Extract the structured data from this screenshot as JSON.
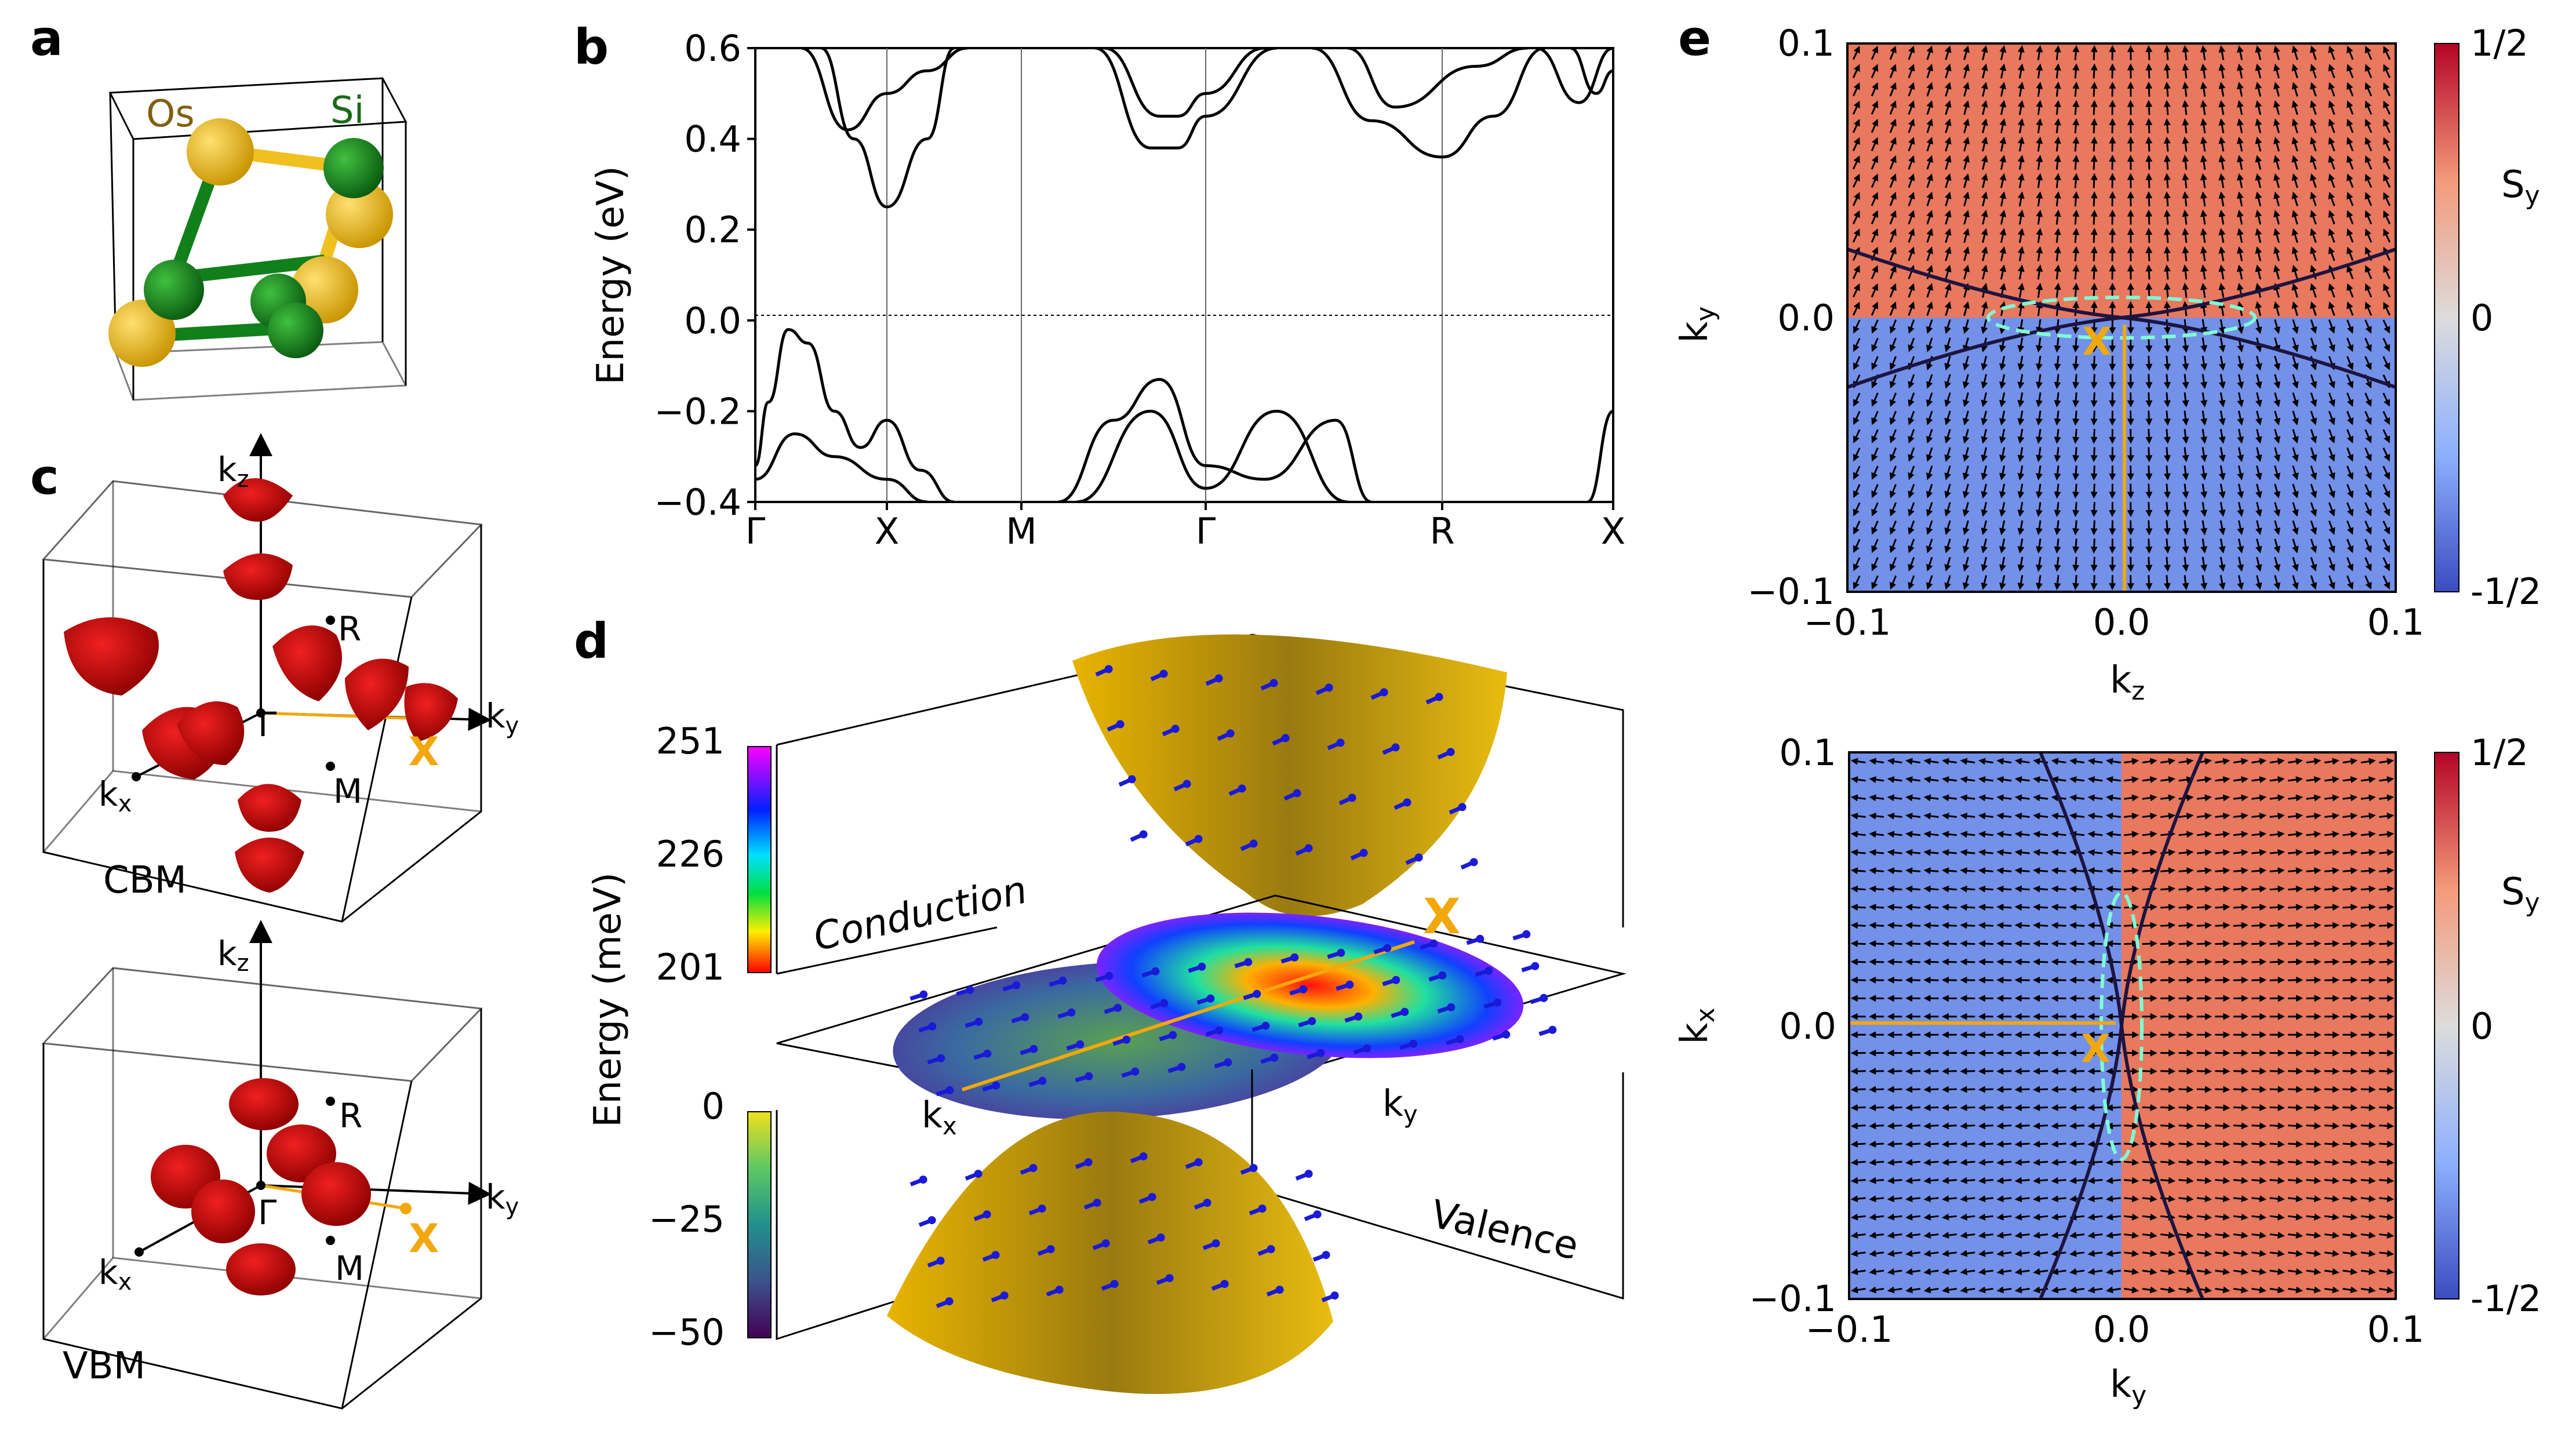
{
  "panels": {
    "a": {
      "letter": "a",
      "atoms": [
        "Os",
        "Si"
      ],
      "colors": {
        "os": "#f0c020",
        "si": "#11801a",
        "os_text": "#806010",
        "si_text": "#1a6a1a"
      }
    },
    "b": {
      "letter": "b",
      "ylabel": "Energy (eV)",
      "yticks": [
        "0.6",
        "0.4",
        "0.2",
        "0.0",
        "−0.2",
        "−0.4"
      ],
      "kpath": [
        "Γ",
        "X",
        "M",
        "Γ",
        "R",
        "X"
      ]
    },
    "c": {
      "letter": "c",
      "top": {
        "label": "CBM",
        "kz": "k",
        "kz_sub": "z",
        "ky": "k",
        "ky_sub": "y",
        "kx": "k",
        "kx_sub": "x",
        "R": "R",
        "Gamma": "Γ",
        "M": "M",
        "X": "X"
      },
      "bottom": {
        "label": "VBM",
        "kz": "k",
        "kz_sub": "z",
        "ky": "k",
        "ky_sub": "y",
        "kx": "k",
        "kx_sub": "x",
        "R": "R",
        "Gamma": "Γ",
        "M": "M",
        "X": "X"
      }
    },
    "d": {
      "letter": "d",
      "ylabel": "Energy (meV)",
      "cond_ticks": [
        "251",
        "226",
        "201"
      ],
      "val_ticks": [
        "0",
        "−25",
        "−50"
      ],
      "conduction": "Conduction",
      "valence": "Valence",
      "kx": "k",
      "kx_sub": "x",
      "ky": "k",
      "ky_sub": "y",
      "X": "X"
    },
    "e": {
      "letter": "e",
      "top": {
        "xlabel": "k",
        "xlabel_sub": "z",
        "ylabel": "k",
        "ylabel_sub": "y",
        "xticks": [
          "−0.1",
          "0.0",
          "0.1"
        ],
        "yticks": [
          "0.1",
          "0.0",
          "−0.1"
        ],
        "cbar_ticks": [
          "1/2",
          "0",
          "-1/2"
        ],
        "cbar_label": "S",
        "cbar_label_sub": "y",
        "X": "X"
      },
      "bottom": {
        "xlabel": "k",
        "xlabel_sub": "y",
        "ylabel": "k",
        "ylabel_sub": "x",
        "xticks": [
          "−0.1",
          "0.0",
          "0.1"
        ],
        "yticks": [
          "0.1",
          "0.0",
          "−0.1"
        ],
        "cbar_ticks": [
          "1/2",
          "0",
          "-1/2"
        ],
        "cbar_label": "S",
        "cbar_label_sub": "y",
        "X": "X"
      }
    }
  },
  "colors": {
    "red_region": "#e8785e",
    "blue_region": "#7391e8",
    "gold": "#f2a80c",
    "cyan": "#7fffd4",
    "navy": "#1e1440"
  },
  "chart_data": {
    "type": "line",
    "title": "",
    "ylabel": "Energy (eV)",
    "ylim": [
      -0.4,
      0.6
    ],
    "k_path": [
      "Γ",
      "X",
      "M",
      "Γ",
      "R",
      "X"
    ],
    "k_ticks": [
      0,
      1,
      2,
      3,
      4,
      5
    ],
    "fermi_level": 0.0,
    "bands": [
      {
        "name": "valence-1",
        "x": [
          0,
          0.1,
          0.25,
          0.4,
          0.6,
          0.8,
          1.0,
          1.25,
          1.5
        ],
        "y": [
          -0.32,
          -0.18,
          -0.02,
          -0.05,
          -0.2,
          -0.28,
          -0.22,
          -0.33,
          -0.4
        ]
      },
      {
        "name": "valence-2",
        "x": [
          0,
          0.3,
          0.6,
          1.0,
          1.3
        ],
        "y": [
          -0.35,
          -0.25,
          -0.3,
          -0.35,
          -0.4
        ]
      },
      {
        "name": "valence-3",
        "x": [
          2.2,
          2.5,
          2.75,
          3.0,
          3.25,
          3.55,
          3.7
        ],
        "y": [
          -0.4,
          -0.22,
          -0.13,
          -0.32,
          -0.35,
          -0.22,
          -0.4
        ]
      },
      {
        "name": "valence-4",
        "x": [
          2.3,
          2.7,
          3.0,
          3.3,
          3.6
        ],
        "y": [
          -0.4,
          -0.2,
          -0.37,
          -0.2,
          -0.4
        ]
      },
      {
        "name": "valence-5",
        "x": [
          4.85,
          5.0
        ],
        "y": [
          -0.4,
          -0.2
        ]
      },
      {
        "name": "conduction-1",
        "x": [
          0.5,
          0.75,
          1.0,
          1.3,
          1.5
        ],
        "y": [
          0.6,
          0.4,
          0.25,
          0.4,
          0.6
        ]
      },
      {
        "name": "conduction-2",
        "x": [
          0.35,
          0.7,
          1.0,
          1.3,
          1.6
        ],
        "y": [
          0.6,
          0.42,
          0.5,
          0.55,
          0.6
        ]
      },
      {
        "name": "conduction-3",
        "x": [
          2.4,
          2.7,
          2.85,
          3.0,
          3.3
        ],
        "y": [
          0.6,
          0.38,
          0.38,
          0.45,
          0.6
        ]
      },
      {
        "name": "conduction-4",
        "x": [
          2.45,
          2.75,
          2.85,
          3.0,
          3.25
        ],
        "y": [
          0.6,
          0.45,
          0.45,
          0.5,
          0.6
        ]
      },
      {
        "name": "conduction-5",
        "x": [
          3.45,
          3.7,
          4.0,
          4.3,
          4.6
        ],
        "y": [
          0.6,
          0.44,
          0.36,
          0.45,
          0.6
        ]
      },
      {
        "name": "conduction-6",
        "x": [
          3.6,
          3.8,
          4.2,
          4.5
        ],
        "y": [
          0.6,
          0.47,
          0.56,
          0.6
        ]
      },
      {
        "name": "conduction-7",
        "x": [
          4.55,
          4.8,
          5.0
        ],
        "y": [
          0.6,
          0.48,
          0.6
        ]
      },
      {
        "name": "conduction-8",
        "x": [
          4.75,
          4.9,
          5.0
        ],
        "y": [
          0.6,
          0.5,
          0.55
        ]
      }
    ]
  }
}
